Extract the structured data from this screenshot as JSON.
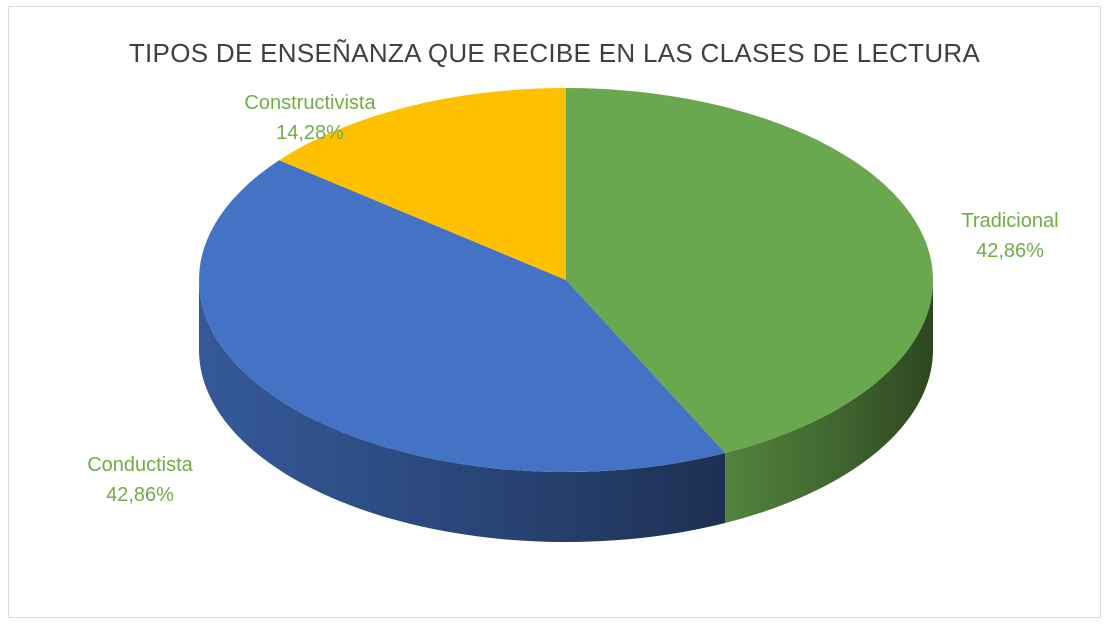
{
  "chart_data": {
    "type": "pie",
    "title": "TIPOS DE ENSEÑANZA QUE RECIBE EN LAS CLASES DE LECTURA",
    "categories": [
      "Tradicional",
      "Conductista",
      "Constructivista"
    ],
    "values": [
      42.86,
      42.86,
      14.28
    ],
    "data_labels": [
      "42,86%",
      "42,86%",
      "14,28%"
    ],
    "colors": [
      "#6aa84f",
      "#4472c4",
      "#ffc000"
    ],
    "label_color": "#70ad47",
    "title_color": "#404040",
    "style": "3d",
    "legend": "none"
  }
}
